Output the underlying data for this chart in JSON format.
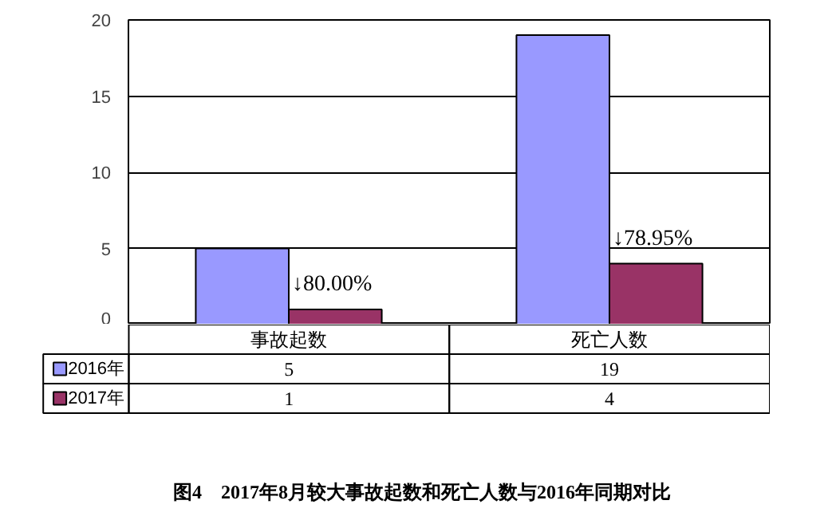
{
  "chart_data": {
    "type": "bar",
    "title": "图4　2017年8月较大事故起数和死亡人数与2016年同期对比",
    "categories": [
      "事故起数",
      "死亡人数"
    ],
    "series": [
      {
        "name": "2016年",
        "color": "#9999ff",
        "values": [
          5,
          19
        ]
      },
      {
        "name": "2017年",
        "color": "#993366",
        "values": [
          1,
          4
        ]
      }
    ],
    "ylim": [
      0,
      20
    ],
    "yticks": [
      0,
      5,
      10,
      15,
      20
    ],
    "grid": "y",
    "legend": "bottom",
    "data_labels": true,
    "annotations": [
      "↓80.00%",
      "↓78.95%"
    ]
  }
}
